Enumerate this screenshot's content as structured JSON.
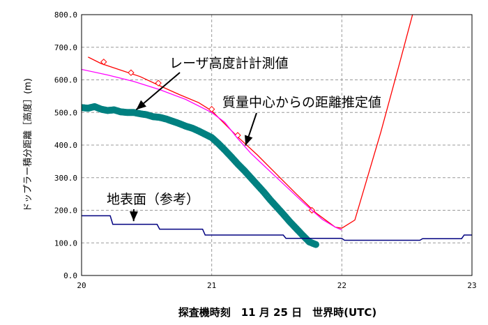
{
  "chart_data": {
    "type": "line",
    "xlabel": "探査機時刻　11 月 25 日　世界時(UTC)",
    "ylabel": "ドップラー積分距離［高度］(m)",
    "xlim": [
      20,
      23
    ],
    "ylim": [
      0,
      800
    ],
    "x_ticks": [
      "20",
      "21",
      "22",
      "23"
    ],
    "y_ticks": [
      "0.0",
      "100.0",
      "200.0",
      "300.0",
      "400.0",
      "500.0",
      "600.0",
      "700.0",
      "800.0"
    ],
    "grid": true,
    "annotations": [
      {
        "text": "レーザ高度計計測値",
        "target_x": 20.42,
        "target_y": 500
      },
      {
        "text": "質量中心からの距離推定値",
        "target_x": 21.26,
        "target_y": 390
      },
      {
        "text": "地表面（参考）",
        "target_x": 20.4,
        "target_y": 158
      }
    ],
    "series": [
      {
        "color": "#ff0000",
        "style": "line-with-diamond-markers",
        "x": [
          20.05,
          20.15,
          20.3,
          20.45,
          20.6,
          20.75,
          20.9,
          21.0,
          21.1,
          21.2,
          21.35,
          21.5,
          21.65,
          21.8,
          21.95,
          22.0,
          22.1,
          22.3,
          22.45,
          22.55
        ],
        "y": [
          670,
          650,
          630,
          610,
          582,
          555,
          530,
          505,
          465,
          425,
          370,
          310,
          250,
          192,
          148,
          145,
          170,
          440,
          660,
          810
        ],
        "markers_x": [
          20.17,
          20.38,
          20.59,
          21.0,
          21.2,
          21.77
        ],
        "markers_y": [
          655,
          622,
          590,
          510,
          430,
          200
        ]
      },
      {
        "color": "#ff00ff",
        "style": "line",
        "x": [
          20.0,
          20.2,
          20.4,
          20.6,
          20.8,
          21.0,
          21.1,
          21.2,
          21.3,
          21.5,
          21.7,
          21.85,
          21.95,
          22.0
        ],
        "y": [
          632,
          615,
          595,
          570,
          540,
          500,
          470,
          420,
          375,
          300,
          225,
          172,
          148,
          140
        ]
      },
      {
        "color": "#008080",
        "style": "dense-open-circles",
        "x": [
          20.0,
          20.05,
          20.1,
          20.15,
          20.2,
          20.25,
          20.3,
          20.35,
          20.4,
          20.45,
          20.5,
          20.55,
          20.6,
          20.65,
          20.7,
          20.75,
          20.8,
          20.85,
          20.9,
          20.95,
          21.0,
          21.05,
          21.1,
          21.15,
          21.2,
          21.25,
          21.3,
          21.35,
          21.4,
          21.45,
          21.5,
          21.55,
          21.6,
          21.65,
          21.7,
          21.75,
          21.8
        ],
        "y": [
          515,
          513,
          518,
          510,
          506,
          508,
          502,
          500,
          500,
          496,
          493,
          487,
          485,
          480,
          473,
          466,
          458,
          452,
          443,
          433,
          423,
          405,
          385,
          364,
          342,
          322,
          300,
          278,
          256,
          232,
          210,
          188,
          165,
          144,
          123,
          103,
          95
        ]
      },
      {
        "color": "#000080",
        "style": "step-line",
        "x": [
          20.0,
          20.22,
          20.24,
          20.58,
          20.6,
          20.93,
          20.95,
          21.55,
          21.57,
          22.0,
          22.02,
          22.6,
          22.62,
          22.92,
          22.94,
          23.0
        ],
        "y": [
          183,
          183,
          157,
          157,
          142,
          142,
          124,
          124,
          114,
          114,
          108,
          108,
          113,
          113,
          124,
          124
        ]
      }
    ]
  }
}
